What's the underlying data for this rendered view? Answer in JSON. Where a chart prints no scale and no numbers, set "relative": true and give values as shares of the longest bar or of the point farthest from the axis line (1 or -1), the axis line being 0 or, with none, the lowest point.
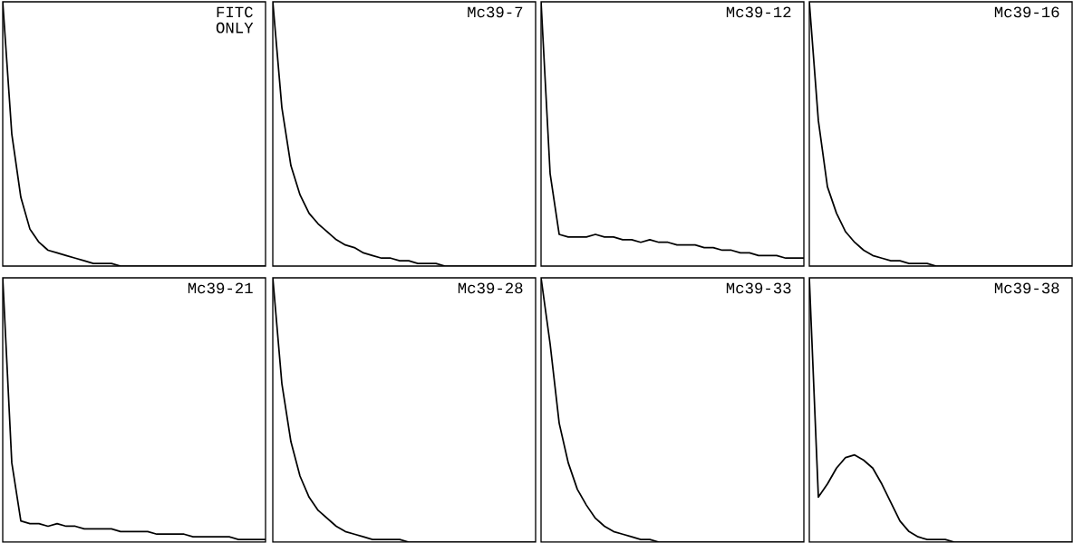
{
  "chart_data": [
    {
      "type": "line",
      "relative": true,
      "title": "FITC ONLY",
      "color": "#000000",
      "categories": [
        null,
        null,
        null,
        null,
        null,
        null,
        null,
        null,
        null,
        null,
        null,
        null,
        null,
        null,
        null,
        null,
        null,
        null,
        null,
        null,
        null,
        null,
        null,
        null,
        null,
        null,
        null,
        null,
        null,
        null
      ],
      "values": [
        1,
        0.5,
        0.26,
        0.14,
        0.09,
        0.06,
        0.05,
        0.04,
        0.03,
        0.02,
        0.01,
        0.01,
        0.01,
        0,
        0,
        0,
        0,
        0,
        0,
        0,
        0,
        0,
        0,
        0,
        0,
        0,
        0,
        0,
        0,
        0
      ]
    },
    {
      "type": "line",
      "relative": true,
      "title": "Mc39-7",
      "color": "#000000",
      "categories": [
        null,
        null,
        null,
        null,
        null,
        null,
        null,
        null,
        null,
        null,
        null,
        null,
        null,
        null,
        null,
        null,
        null,
        null,
        null,
        null,
        null,
        null,
        null,
        null,
        null,
        null,
        null,
        null,
        null,
        null
      ],
      "values": [
        1,
        0.6,
        0.38,
        0.27,
        0.2,
        0.16,
        0.13,
        0.1,
        0.08,
        0.07,
        0.05,
        0.04,
        0.03,
        0.03,
        0.02,
        0.02,
        0.01,
        0.01,
        0.01,
        0,
        0,
        0,
        0,
        0,
        0,
        0,
        0,
        0,
        0,
        0
      ]
    },
    {
      "type": "line",
      "relative": true,
      "title": "Mc39-12",
      "color": "#000000",
      "categories": [
        null,
        null,
        null,
        null,
        null,
        null,
        null,
        null,
        null,
        null,
        null,
        null,
        null,
        null,
        null,
        null,
        null,
        null,
        null,
        null,
        null,
        null,
        null,
        null,
        null,
        null,
        null,
        null,
        null,
        null
      ],
      "values": [
        1,
        0.35,
        0.12,
        0.11,
        0.11,
        0.11,
        0.12,
        0.11,
        0.11,
        0.1,
        0.1,
        0.09,
        0.1,
        0.09,
        0.09,
        0.08,
        0.08,
        0.08,
        0.07,
        0.07,
        0.06,
        0.06,
        0.05,
        0.05,
        0.04,
        0.04,
        0.04,
        0.03,
        0.03,
        0.03
      ]
    },
    {
      "type": "line",
      "relative": true,
      "title": "Mc39-16",
      "color": "#000000",
      "categories": [
        null,
        null,
        null,
        null,
        null,
        null,
        null,
        null,
        null,
        null,
        null,
        null,
        null,
        null,
        null,
        null,
        null,
        null,
        null,
        null,
        null,
        null,
        null,
        null,
        null,
        null,
        null,
        null,
        null,
        null
      ],
      "values": [
        1,
        0.55,
        0.3,
        0.2,
        0.13,
        0.09,
        0.06,
        0.04,
        0.03,
        0.02,
        0.02,
        0.01,
        0.01,
        0.01,
        0,
        0,
        0,
        0,
        0,
        0,
        0,
        0,
        0,
        0,
        0,
        0,
        0,
        0,
        0,
        0
      ]
    },
    {
      "type": "line",
      "relative": true,
      "title": "Mc39-21",
      "color": "#000000",
      "categories": [
        null,
        null,
        null,
        null,
        null,
        null,
        null,
        null,
        null,
        null,
        null,
        null,
        null,
        null,
        null,
        null,
        null,
        null,
        null,
        null,
        null,
        null,
        null,
        null,
        null,
        null,
        null,
        null,
        null,
        null
      ],
      "values": [
        1,
        0.3,
        0.08,
        0.07,
        0.07,
        0.06,
        0.07,
        0.06,
        0.06,
        0.05,
        0.05,
        0.05,
        0.05,
        0.04,
        0.04,
        0.04,
        0.04,
        0.03,
        0.03,
        0.03,
        0.03,
        0.02,
        0.02,
        0.02,
        0.02,
        0.02,
        0.01,
        0.01,
        0.01,
        0.01
      ]
    },
    {
      "type": "line",
      "relative": true,
      "title": "Mc39-28",
      "color": "#000000",
      "categories": [
        null,
        null,
        null,
        null,
        null,
        null,
        null,
        null,
        null,
        null,
        null,
        null,
        null,
        null,
        null,
        null,
        null,
        null,
        null,
        null,
        null,
        null,
        null,
        null,
        null,
        null,
        null,
        null,
        null,
        null
      ],
      "values": [
        1,
        0.6,
        0.38,
        0.25,
        0.17,
        0.12,
        0.09,
        0.06,
        0.04,
        0.03,
        0.02,
        0.01,
        0.01,
        0.01,
        0.01,
        0,
        0,
        0,
        0,
        0,
        0,
        0,
        0,
        0,
        0,
        0,
        0,
        0,
        0,
        0
      ]
    },
    {
      "type": "line",
      "relative": true,
      "title": "Mc39-33",
      "color": "#000000",
      "categories": [
        null,
        null,
        null,
        null,
        null,
        null,
        null,
        null,
        null,
        null,
        null,
        null,
        null,
        null,
        null,
        null,
        null,
        null,
        null,
        null,
        null,
        null,
        null,
        null,
        null,
        null,
        null,
        null,
        null,
        null
      ],
      "values": [
        1,
        0.75,
        0.45,
        0.3,
        0.2,
        0.14,
        0.09,
        0.06,
        0.04,
        0.03,
        0.02,
        0.01,
        0.01,
        0,
        0,
        0,
        0,
        0,
        0,
        0,
        0,
        0,
        0,
        0,
        0,
        0,
        0,
        0,
        0,
        0
      ]
    },
    {
      "type": "line",
      "relative": true,
      "title": "Mc39-38",
      "color": "#000000",
      "categories": [
        null,
        null,
        null,
        null,
        null,
        null,
        null,
        null,
        null,
        null,
        null,
        null,
        null,
        null,
        null,
        null,
        null,
        null,
        null,
        null,
        null,
        null,
        null,
        null,
        null,
        null,
        null,
        null,
        null,
        null
      ],
      "values": [
        1,
        0.17,
        0.22,
        0.28,
        0.32,
        0.33,
        0.31,
        0.28,
        0.22,
        0.15,
        0.08,
        0.04,
        0.02,
        0.01,
        0.01,
        0.01,
        0,
        0,
        0,
        0,
        0,
        0,
        0,
        0,
        0,
        0,
        0,
        0,
        0,
        0
      ]
    }
  ]
}
